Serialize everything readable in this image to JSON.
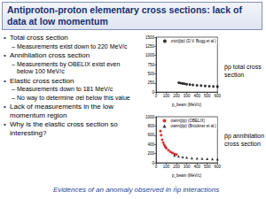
{
  "slide": {
    "title": "Antiproton-proton elementary cross sections: lack of data at low momentum",
    "bullets": [
      {
        "text": "Total cross section",
        "sub": [
          "Measurements exist down to 220 MeV/c"
        ]
      },
      {
        "text": "Annihilation cross section",
        "sub": [
          "Measurements by OBELIX exist even below 100 MeV/c"
        ]
      },
      {
        "text": "Elastic cross section",
        "sub": [
          "Measurements down to 181 MeV/c",
          "No way to determine σel below this value"
        ]
      },
      {
        "text": "Lack of measurements in the low momentum region",
        "sub": []
      },
      {
        "text": "Why is the elastic cross section so interesting?",
        "sub": []
      }
    ],
    "footer": "Evidences of an anomaly observed in n̄p interactions"
  },
  "chart_data": [
    {
      "type": "scatter",
      "annotation": "p̄p total cross section",
      "x_label": "p_beam (MeV/c)",
      "xlim": [
        0,
        600
      ],
      "xticks": [
        0,
        100,
        200,
        300,
        400,
        500,
        600
      ],
      "ylim": [
        0,
        1500
      ],
      "yticks": [
        0,
        250,
        500,
        750,
        1000,
        1250,
        1500
      ],
      "grid": false,
      "legend": "top-right",
      "series": [
        {
          "name": "σtot(p̄p) (D.V. Bugg et al.)",
          "color": "#000000",
          "marker": "circle",
          "x": [
            222,
            240,
            260,
            280,
            300,
            330,
            360,
            400,
            440,
            480,
            520,
            560,
            600
          ],
          "values": [
            255,
            245,
            235,
            225,
            215,
            205,
            195,
            185,
            175,
            168,
            160,
            155,
            150
          ]
        }
      ]
    },
    {
      "type": "scatter",
      "annotation": "p̄p annihilation cross section",
      "x_label": "p_beam (MeV/c)",
      "xlim": [
        0,
        600
      ],
      "xticks": [
        0,
        100,
        200,
        300,
        400,
        500,
        600
      ],
      "ylim": [
        0,
        1000
      ],
      "yticks": [
        0,
        200,
        400,
        600,
        800,
        1000
      ],
      "grid": false,
      "legend": "top-right",
      "series": [
        {
          "name": "σann(p̄p) (OBELIX)",
          "color": "#cc0000",
          "marker": "circle",
          "x": [
            43,
            50,
            60,
            70,
            80,
            90,
            100,
            120,
            140,
            160,
            180,
            200
          ],
          "values": [
            690,
            600,
            500,
            440,
            390,
            350,
            320,
            275,
            240,
            215,
            195,
            180
          ]
        },
        {
          "name": "σann(p̄p) (Brückner et al.)",
          "color": "#000000",
          "marker": "triangle",
          "x": [
            180,
            220,
            260,
            300,
            350,
            400,
            450,
            500,
            550,
            600
          ],
          "values": [
            160,
            140,
            125,
            115,
            105,
            98,
            92,
            88,
            84,
            80
          ]
        }
      ]
    }
  ]
}
